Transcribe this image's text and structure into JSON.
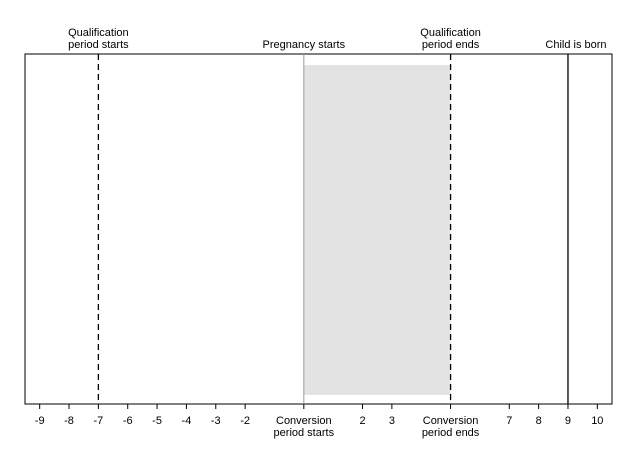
{
  "timeline": {
    "top_annotations": [
      {
        "x": -7,
        "lines": [
          "Qualification",
          "period starts"
        ],
        "line_style": "dashed"
      },
      {
        "x": 0,
        "lines": [
          "Pregnancy starts"
        ],
        "line_style": "solid"
      },
      {
        "x": 5,
        "lines": [
          "Qualification",
          "period ends"
        ],
        "line_style": "dashed"
      },
      {
        "x": 9,
        "lines": [
          "Child is born"
        ],
        "line_style": "solid"
      }
    ],
    "shaded_interval": {
      "from": 0,
      "to": 5,
      "color": "#e3e3e3"
    },
    "axis": {
      "min": -9.5,
      "max": 10.5,
      "ticks": [
        {
          "x": -9,
          "lines": [
            "-9"
          ]
        },
        {
          "x": -8,
          "lines": [
            "-8"
          ]
        },
        {
          "x": -7,
          "lines": [
            "-7"
          ]
        },
        {
          "x": -6,
          "lines": [
            "-6"
          ]
        },
        {
          "x": -5,
          "lines": [
            "-5"
          ]
        },
        {
          "x": -4,
          "lines": [
            "-4"
          ]
        },
        {
          "x": -3,
          "lines": [
            "-3"
          ]
        },
        {
          "x": -2,
          "lines": [
            "-2"
          ]
        },
        {
          "x": 0,
          "lines": [
            "Conversion",
            "period starts"
          ]
        },
        {
          "x": 2,
          "lines": [
            "2"
          ]
        },
        {
          "x": 3,
          "lines": [
            "3"
          ]
        },
        {
          "x": 5,
          "lines": [
            "Conversion",
            "period ends"
          ]
        },
        {
          "x": 7,
          "lines": [
            "7"
          ]
        },
        {
          "x": 8,
          "lines": [
            "8"
          ]
        },
        {
          "x": 9,
          "lines": [
            "9"
          ]
        },
        {
          "x": 10,
          "lines": [
            "10"
          ]
        }
      ]
    }
  }
}
